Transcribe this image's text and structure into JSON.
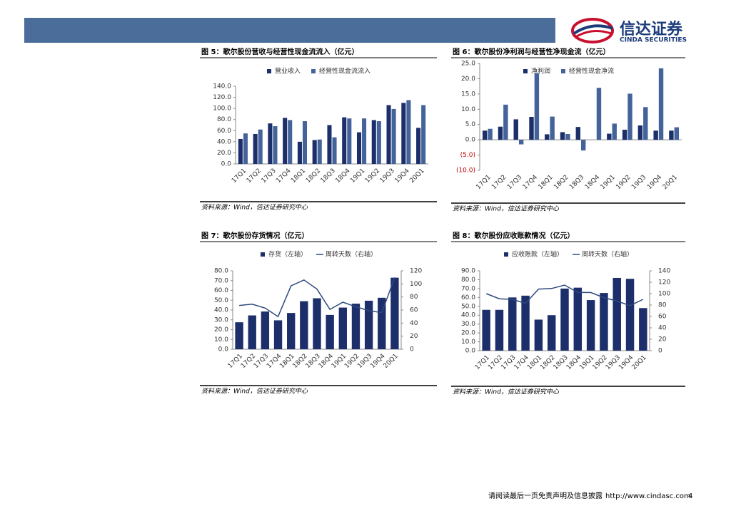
{
  "header": {
    "logo_cn": "信达证券",
    "logo_en": "CINDA SECURITIES"
  },
  "chart_data": [
    {
      "type": "bar",
      "title": "图 5：歌尔股份营收与经营性现金流流入（亿元）",
      "source": "资料来源：Wind，信达证券研究中心",
      "legend": "top",
      "categories": [
        "17Q1",
        "17Q2",
        "17Q3",
        "17Q4",
        "18Q1",
        "18Q2",
        "18Q3",
        "18Q4",
        "19Q1",
        "19Q2",
        "19Q3",
        "19Q4",
        "20Q1"
      ],
      "series": [
        {
          "name": "营业收入",
          "color": "#1c2f6b",
          "values": [
            45,
            54,
            73,
            83,
            40,
            43,
            70,
            84,
            57,
            79,
            106,
            110,
            65
          ]
        },
        {
          "name": "经营性现金流流入",
          "color": "#44639a",
          "values": [
            55,
            62,
            68,
            79,
            77,
            44,
            48,
            82,
            82,
            77,
            99,
            115,
            106
          ]
        }
      ],
      "ylim": [
        0,
        140
      ],
      "yticks": [
        {
          "value": 0,
          "label": "0.0"
        },
        {
          "value": 20,
          "label": "20.0"
        },
        {
          "value": 40,
          "label": "40.0"
        },
        {
          "value": 60,
          "label": "60.0"
        },
        {
          "value": 80,
          "label": "80.0"
        },
        {
          "value": 100,
          "label": "100.0"
        },
        {
          "value": 120,
          "label": "120.0"
        },
        {
          "value": 140,
          "label": "140.0"
        }
      ]
    },
    {
      "type": "bar",
      "title": "图 6：歌尔股份净利润与经营性净现金流（亿元）",
      "source": "资料来源：Wind，信达证券研究中心",
      "legend": "top",
      "negative_tick_color": "#c00000",
      "categories": [
        "17Q1",
        "17Q2",
        "17Q3",
        "17Q4",
        "18Q1",
        "18Q2",
        "18Q3",
        "18Q4",
        "19Q1",
        "19Q2",
        "19Q3",
        "19Q4",
        "20Q1"
      ],
      "series": [
        {
          "name": "净利润",
          "color": "#1c2f6b",
          "values": [
            3.0,
            4.3,
            6.7,
            7.5,
            1.8,
            2.5,
            4.2,
            0,
            2.0,
            3.3,
            4.7,
            3.0,
            3.0
          ]
        },
        {
          "name": "经营性现金净流",
          "color": "#44639a",
          "values": [
            3.6,
            11.5,
            -1.5,
            21.8,
            7.6,
            1.9,
            -3.5,
            17.0,
            5.3,
            15.1,
            10.7,
            23.4,
            4.1
          ]
        }
      ],
      "ylim": [
        -10,
        25
      ],
      "yticks": [
        {
          "value": -10,
          "label": "(10.0)"
        },
        {
          "value": -5,
          "label": "(5.0)"
        },
        {
          "value": 0,
          "label": "0.0"
        },
        {
          "value": 5,
          "label": "5.0"
        },
        {
          "value": 10,
          "label": "10.0"
        },
        {
          "value": 15,
          "label": "15.0"
        },
        {
          "value": 20,
          "label": "20.0"
        },
        {
          "value": 25,
          "label": "25.0"
        }
      ]
    },
    {
      "type": "bar",
      "title": "图 7：歌尔股份存货情况（亿元）",
      "source": "资料来源：Wind，信达证券研究中心",
      "legend": "top",
      "categories": [
        "17Q1",
        "17Q2",
        "17Q3",
        "17Q4",
        "18Q1",
        "18Q2",
        "18Q3",
        "18Q4",
        "19Q1",
        "19Q2",
        "19Q3",
        "19Q4",
        "20Q1"
      ],
      "series": [
        {
          "name": "存货（左轴）",
          "type": "bar",
          "color": "#1c2f6b",
          "values": [
            27.5,
            34.5,
            38.5,
            29.5,
            37,
            49,
            52,
            35,
            42.5,
            46.5,
            49.5,
            52.5,
            73
          ]
        },
        {
          "name": "周转天数（右轴）",
          "type": "line",
          "axis": "y2",
          "color": "#2e4a7d",
          "values": [
            67,
            69,
            63,
            50,
            97,
            106,
            92,
            61,
            72,
            65,
            59,
            56,
            110
          ]
        }
      ],
      "ylim": [
        0,
        80
      ],
      "yticks": [
        {
          "value": 0,
          "label": "0.0"
        },
        {
          "value": 10,
          "label": "10.0"
        },
        {
          "value": 20,
          "label": "20.0"
        },
        {
          "value": 30,
          "label": "30.0"
        },
        {
          "value": 40,
          "label": "40.0"
        },
        {
          "value": 50,
          "label": "50.0"
        },
        {
          "value": 60,
          "label": "60.0"
        },
        {
          "value": 70,
          "label": "70.0"
        },
        {
          "value": 80,
          "label": "80.0"
        }
      ],
      "y2lim": [
        0,
        120
      ],
      "y2ticks": [
        0,
        20,
        40,
        60,
        80,
        100,
        120
      ]
    },
    {
      "type": "bar",
      "title": "图 8：歌尔股份应收账款情况（亿元）",
      "source": "资料来源：Wind，信达证券研究中心",
      "legend": "top",
      "categories": [
        "17Q1",
        "17Q2",
        "17Q3",
        "17Q4",
        "18Q1",
        "18Q2",
        "18Q3",
        "18Q4",
        "19Q1",
        "19Q2",
        "19Q3",
        "19Q4",
        "20Q1"
      ],
      "series": [
        {
          "name": "应收账款（左轴）",
          "type": "bar",
          "color": "#1c2f6b",
          "values": [
            46,
            46,
            60,
            62,
            35,
            40,
            70,
            71,
            57,
            65,
            82,
            81,
            48
          ]
        },
        {
          "name": "周转天数（右轴）",
          "type": "line",
          "axis": "y2",
          "color": "#2e4a7d",
          "values": [
            100,
            91,
            90,
            83,
            108,
            109,
            115,
            102,
            102,
            93,
            87,
            79,
            90
          ]
        }
      ],
      "ylim": [
        0,
        90
      ],
      "yticks": [
        {
          "value": 0,
          "label": "0.0"
        },
        {
          "value": 10,
          "label": "10.0"
        },
        {
          "value": 20,
          "label": "20.0"
        },
        {
          "value": 30,
          "label": "30.0"
        },
        {
          "value": 40,
          "label": "40.0"
        },
        {
          "value": 50,
          "label": "50.0"
        },
        {
          "value": 60,
          "label": "60.0"
        },
        {
          "value": 70,
          "label": "70.0"
        },
        {
          "value": 80,
          "label": "80.0"
        },
        {
          "value": 90,
          "label": "90.0"
        }
      ],
      "y2lim": [
        0,
        140
      ],
      "y2ticks": [
        0,
        20,
        40,
        60,
        80,
        100,
        120,
        140
      ]
    }
  ],
  "footer": {
    "disclaimer": "请阅读最后一页免责声明及信息披露",
    "url": "http://www.cindasc.com",
    "page": 4
  }
}
